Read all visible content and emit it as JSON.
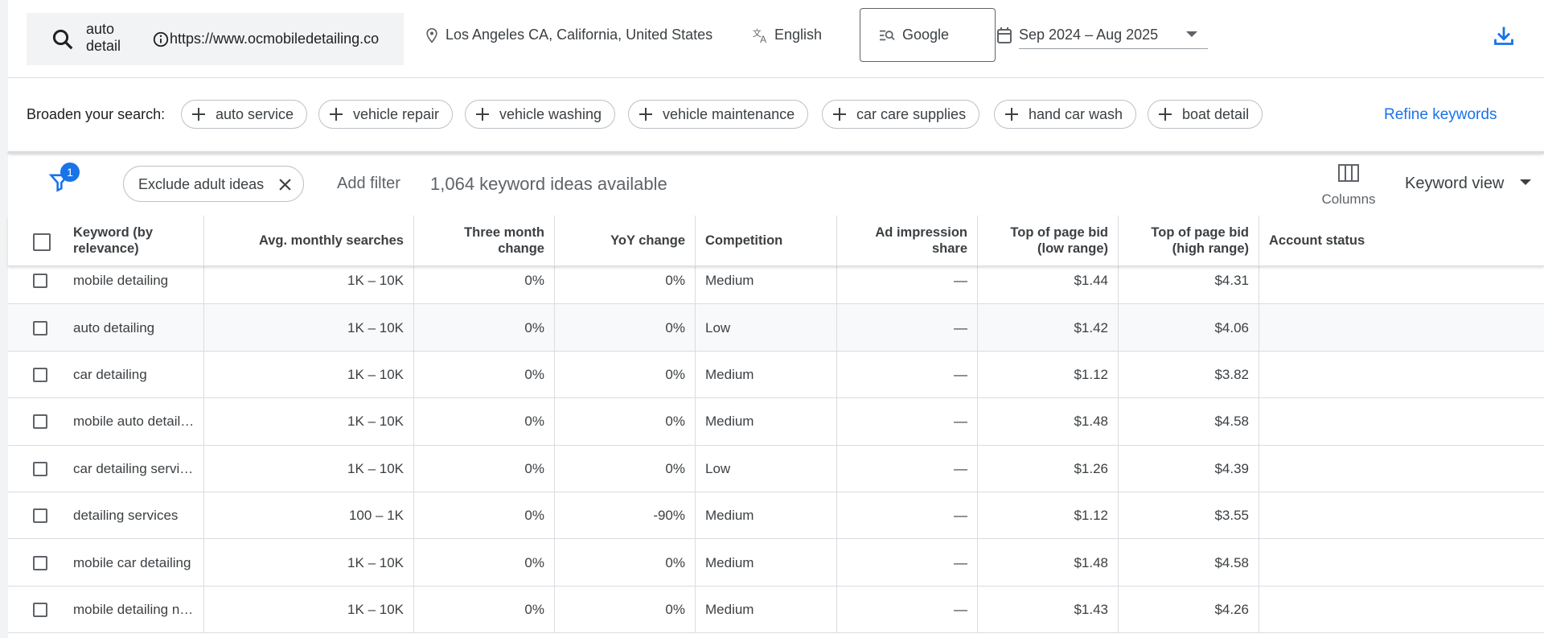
{
  "search": {
    "keyword": "auto detail",
    "url": "https://www.ocmobiledetailing.co",
    "location": "Los Angeles CA, California, United States",
    "language": "English",
    "network": "Google",
    "date_range": "Sep 2024 – Aug 2025"
  },
  "broaden": {
    "label": "Broaden your search:",
    "chips": [
      "auto service",
      "vehicle repair",
      "vehicle washing",
      "vehicle maintenance",
      "car care supplies",
      "hand car wash",
      "boat detail"
    ],
    "refine": "Refine keywords"
  },
  "filters": {
    "badge": "1",
    "chip": "Exclude adult ideas",
    "add": "Add filter",
    "count": "1,064 keyword ideas available",
    "columns": "Columns",
    "view": "Keyword view"
  },
  "table": {
    "columns": [
      "Keyword (by relevance)",
      "Avg. monthly searches",
      "Three month change",
      "YoY change",
      "Competition",
      "Ad impression share",
      "Top of page bid (low range)",
      "Top of page bid (high range)",
      "Account status"
    ],
    "rows": [
      [
        "mobile detailing",
        "1K – 10K",
        "0%",
        "0%",
        "Medium",
        "—",
        "$1.44",
        "$4.31"
      ],
      [
        "auto detailing",
        "1K – 10K",
        "0%",
        "0%",
        "Low",
        "—",
        "$1.42",
        "$4.06"
      ],
      [
        "car detailing",
        "1K – 10K",
        "0%",
        "0%",
        "Medium",
        "—",
        "$1.12",
        "$3.82"
      ],
      [
        "mobile auto detail…",
        "1K – 10K",
        "0%",
        "0%",
        "Medium",
        "—",
        "$1.48",
        "$4.58"
      ],
      [
        "car detailing servi…",
        "1K – 10K",
        "0%",
        "0%",
        "Low",
        "—",
        "$1.26",
        "$4.39"
      ],
      [
        "detailing services",
        "100 – 1K",
        "0%",
        "-90%",
        "Medium",
        "—",
        "$1.12",
        "$3.55"
      ],
      [
        "mobile car detailing",
        "1K – 10K",
        "0%",
        "0%",
        "Medium",
        "—",
        "$1.48",
        "$4.58"
      ],
      [
        "mobile detailing n…",
        "1K – 10K",
        "0%",
        "0%",
        "Medium",
        "—",
        "$1.43",
        "$4.26"
      ]
    ]
  }
}
